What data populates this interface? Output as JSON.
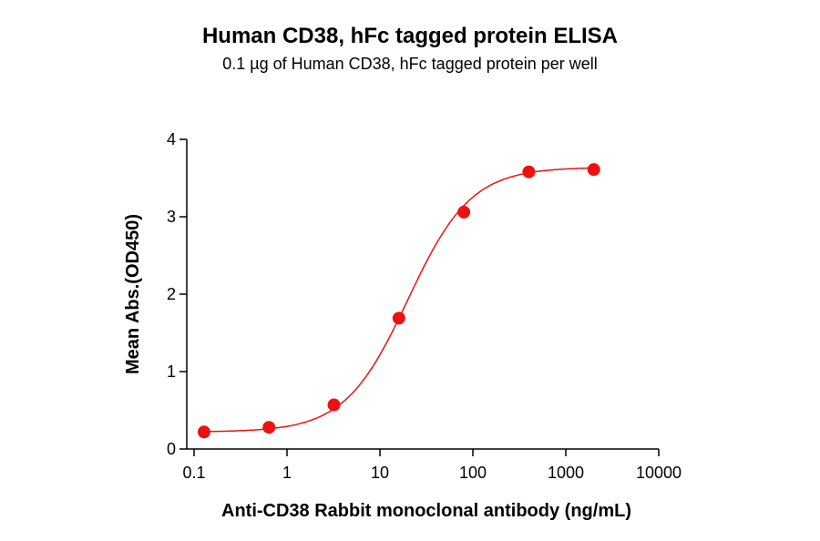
{
  "chart_data": {
    "type": "scatter",
    "title": "Human CD38, hFc tagged protein ELISA",
    "subtitle": "0.1 µg of Human CD38, hFc tagged protein per well",
    "xlabel": "Anti-CD38 Rabbit monoclonal antibody (ng/mL)",
    "ylabel": "Mean Abs.(OD450)",
    "xscale": "log",
    "xlim": [
      0.1,
      10000
    ],
    "ylim": [
      0,
      4
    ],
    "xticks": [
      "0.1",
      "1",
      "10",
      "100",
      "1000",
      "10000"
    ],
    "yticks": [
      "0",
      "1",
      "2",
      "3",
      "4"
    ],
    "grid": false,
    "x": [
      0.128,
      0.64,
      3.2,
      16,
      80,
      400,
      2000
    ],
    "y": [
      0.22,
      0.28,
      0.57,
      1.69,
      3.06,
      3.58,
      3.61
    ],
    "fit": {
      "type": "4PL",
      "bottom": 0.22,
      "top": 3.64,
      "ec50": 20,
      "hill": 1.28
    },
    "color": "#ee1111"
  }
}
